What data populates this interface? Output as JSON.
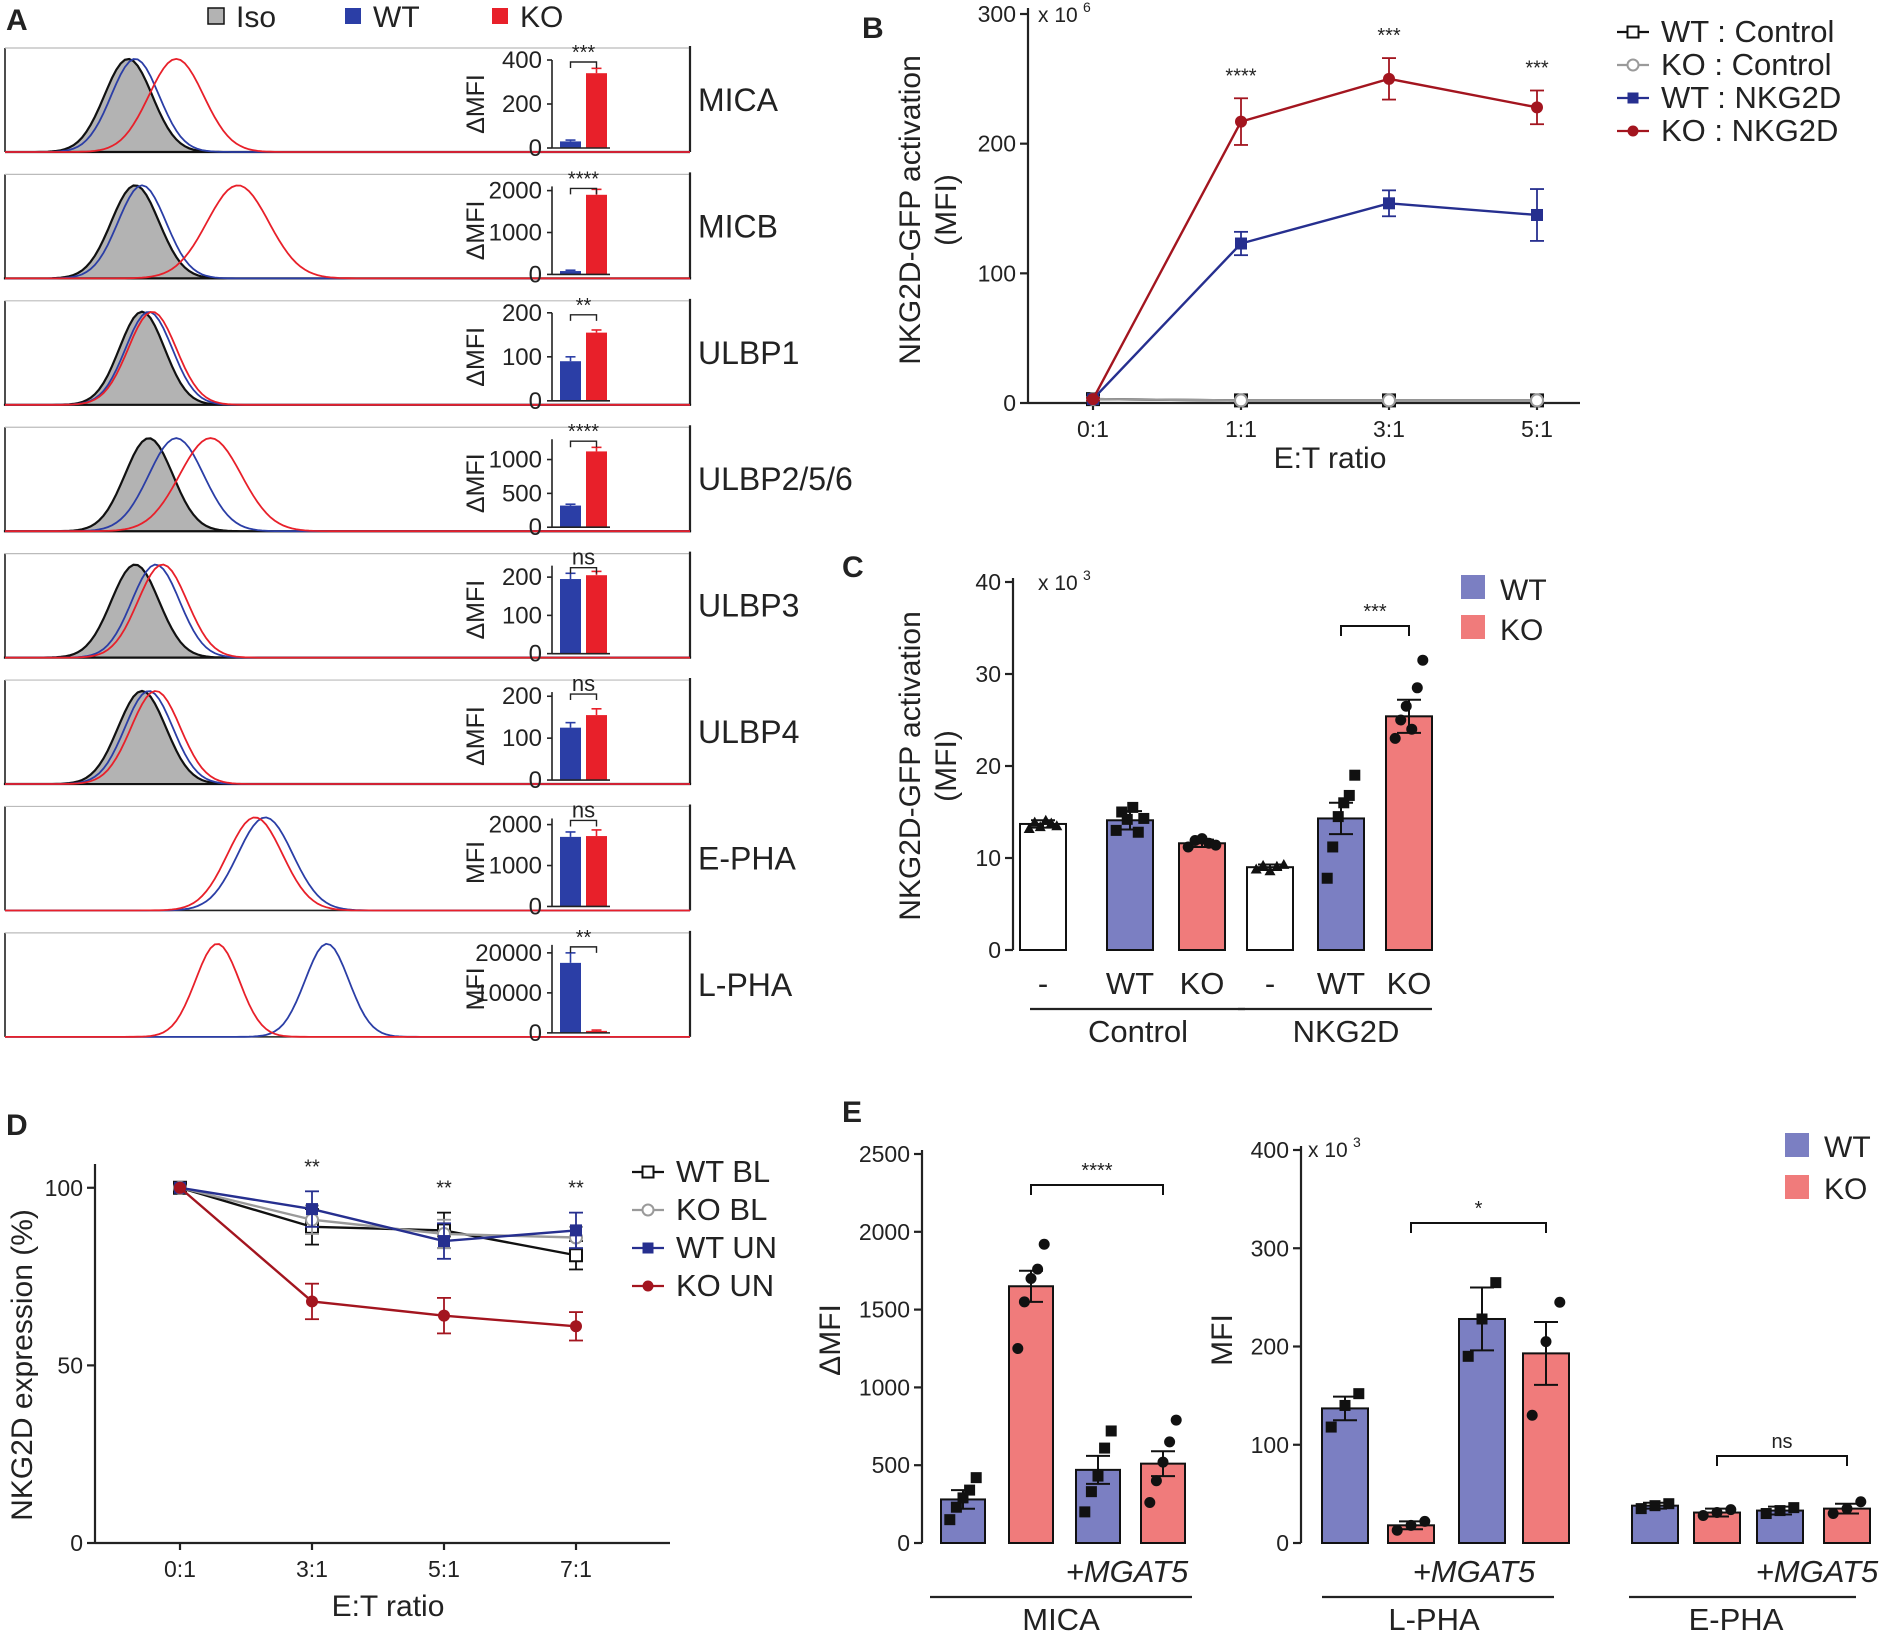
{
  "colors": {
    "iso_fill": "#b3b3b3",
    "iso_line": "#111111",
    "wt_hist": "#2b3ea6",
    "ko_hist": "#e8202a",
    "wt_dark": "#262f8f",
    "ko_dark": "#a3151f",
    "wt_light": "#7b7fc2",
    "ko_light": "#f07b7b",
    "gray": "#9a9a9a",
    "black": "#111111"
  },
  "chart_data": [
    {
      "panel": "A",
      "type": "histogram-with-bars",
      "legend": [
        "Iso",
        "WT",
        "KO"
      ],
      "rows": [
        {
          "name": "MICA",
          "ylabel": "ΔMFI",
          "ticks": [
            0,
            200,
            400
          ],
          "tick_labels": [
            "0",
            "200",
            "400"
          ],
          "ymax": 400,
          "wt": 30,
          "ko": 340,
          "wt_err": 6,
          "ko_err": 22,
          "sig": "***",
          "peaks": {
            "iso": 0.18,
            "wt": 0.19,
            "ko": 0.25
          },
          "widths": {
            "iso": 0.035,
            "wt": 0.035,
            "ko": 0.04
          }
        },
        {
          "name": "MICB",
          "ylabel": "ΔMFI",
          "ticks": [
            0,
            1000,
            2000
          ],
          "tick_labels": [
            "0",
            "1000",
            "2000"
          ],
          "ymax": 2100,
          "wt": 80,
          "ko": 1900,
          "wt_err": 20,
          "ko_err": 130,
          "sig": "****",
          "peaks": {
            "iso": 0.19,
            "wt": 0.2,
            "ko": 0.34
          },
          "widths": {
            "iso": 0.035,
            "wt": 0.035,
            "ko": 0.045
          }
        },
        {
          "name": "ULBP1",
          "ylabel": "ΔMFI",
          "ticks": [
            0,
            100,
            200
          ],
          "tick_labels": [
            "0",
            "100",
            "200"
          ],
          "ymax": 200,
          "wt": 90,
          "ko": 155,
          "wt_err": 10,
          "ko_err": 6,
          "sig": "**",
          "peaks": {
            "iso": 0.2,
            "wt": 0.21,
            "ko": 0.215
          },
          "widths": {
            "iso": 0.033,
            "wt": 0.034,
            "ko": 0.035
          }
        },
        {
          "name": "ULBP2/5/6",
          "ylabel": "ΔMFI",
          "ticks": [
            0,
            500,
            1000
          ],
          "tick_labels": [
            "0",
            "500",
            "1000"
          ],
          "ymax": 1300,
          "wt": 320,
          "ko": 1120,
          "wt_err": 20,
          "ko_err": 60,
          "sig": "****",
          "peaks": {
            "iso": 0.21,
            "wt": 0.25,
            "ko": 0.3
          },
          "widths": {
            "iso": 0.035,
            "wt": 0.04,
            "ko": 0.045
          }
        },
        {
          "name": "ULBP3",
          "ylabel": "ΔMFI",
          "ticks": [
            0,
            100,
            200
          ],
          "tick_labels": [
            "0",
            "100",
            "200"
          ],
          "ymax": 230,
          "wt": 195,
          "ko": 205,
          "wt_err": 15,
          "ko_err": 10,
          "sig": "ns",
          "peaks": {
            "iso": 0.19,
            "wt": 0.22,
            "ko": 0.23
          },
          "widths": {
            "iso": 0.035,
            "wt": 0.035,
            "ko": 0.036
          }
        },
        {
          "name": "ULBP4",
          "ylabel": "ΔMFI",
          "ticks": [
            0,
            100,
            200
          ],
          "tick_labels": [
            "0",
            "100",
            "200"
          ],
          "ymax": 210,
          "wt": 125,
          "ko": 155,
          "wt_err": 12,
          "ko_err": 15,
          "sig": "ns",
          "peaks": {
            "iso": 0.2,
            "wt": 0.21,
            "ko": 0.22
          },
          "widths": {
            "iso": 0.035,
            "wt": 0.035,
            "ko": 0.036
          }
        },
        {
          "name": "E-PHA",
          "ylabel": "MFI",
          "ticks": [
            0,
            1000,
            2000
          ],
          "tick_labels": [
            "0",
            "1000",
            "2000"
          ],
          "ymax": 2150,
          "wt": 1700,
          "ko": 1720,
          "wt_err": 120,
          "ko_err": 150,
          "sig": "ns",
          "peaks": {
            "wt": 0.38,
            "ko": 0.365
          },
          "widths": {
            "wt": 0.04,
            "ko": 0.04
          }
        },
        {
          "name": "L-PHA",
          "ylabel": "MFI",
          "ticks": [
            0,
            10000,
            20000
          ],
          "tick_labels": [
            "0",
            "10000",
            "20000"
          ],
          "ymax": 22000,
          "wt": 17500,
          "ko": 500,
          "wt_err": 2500,
          "ko_err": 200,
          "sig": "**",
          "peaks": {
            "wt": 0.47,
            "ko": 0.31
          },
          "widths": {
            "wt": 0.032,
            "ko": 0.032
          }
        }
      ]
    },
    {
      "panel": "B",
      "type": "line",
      "ylabel": "NKG2D-GFP activation (MFI)",
      "xlabel": "E:T ratio",
      "multiplier": "x 10",
      "multiplier_exp": "6",
      "categories": [
        "0:1",
        "1:1",
        "3:1",
        "5:1"
      ],
      "yticks": [
        0,
        100,
        200,
        300
      ],
      "tick_labels": [
        "0",
        "100",
        "200",
        "300"
      ],
      "ylim": [
        0,
        300
      ],
      "series": [
        {
          "name": "WT : Control",
          "values": [
            3,
            2,
            2,
            2
          ],
          "err": [
            1,
            1,
            1,
            1
          ],
          "marker": "open-square",
          "color": "black"
        },
        {
          "name": "KO : Control",
          "values": [
            3,
            2,
            2,
            2
          ],
          "err": [
            1,
            1,
            1,
            1
          ],
          "marker": "open-circle",
          "color": "gray"
        },
        {
          "name": "WT : NKG2D",
          "values": [
            3,
            123,
            154,
            145
          ],
          "err": [
            1,
            9,
            10,
            20
          ],
          "marker": "square",
          "color": "wt_dark"
        },
        {
          "name": "KO : NKG2D",
          "values": [
            3,
            217,
            250,
            228
          ],
          "err": [
            1,
            18,
            16,
            13
          ],
          "marker": "circle",
          "color": "ko_dark"
        }
      ],
      "significance": [
        "",
        "****",
        "***",
        "***"
      ]
    },
    {
      "panel": "C",
      "type": "bar",
      "ylabel": "NKG2D-GFP activation (MFI)",
      "multiplier": "x 10",
      "multiplier_exp": "3",
      "yticks": [
        0,
        10,
        20,
        30,
        40
      ],
      "tick_labels": [
        "0",
        "10",
        "20",
        "30",
        "40"
      ],
      "ylim": [
        0,
        40
      ],
      "legend": [
        "WT",
        "KO"
      ],
      "categories": [
        "-",
        "WT",
        "KO",
        "-",
        "WT",
        "KO"
      ],
      "groups": [
        "Control",
        "NKG2D"
      ],
      "values": [
        13.7,
        14.1,
        11.6,
        9.0,
        14.3,
        25.4
      ],
      "errors": [
        0.4,
        1.0,
        0.4,
        0.3,
        1.7,
        1.8
      ],
      "fill": [
        "white",
        "wt_light",
        "ko_light",
        "white",
        "wt_light",
        "ko_light"
      ],
      "marker": [
        "triangle",
        "square",
        "circle",
        "triangle",
        "square",
        "circle"
      ],
      "points": [
        [
          13.2,
          13.9,
          13.4,
          14.1,
          13.8,
          13.5
        ],
        [
          13.0,
          15.0,
          14.2,
          15.5,
          12.8,
          14.3
        ],
        [
          11.2,
          11.9,
          12.1,
          11.6,
          11.4
        ],
        [
          8.8,
          9.2,
          8.6,
          9.1,
          9.3
        ],
        [
          7.8,
          11.2,
          14.5,
          16.0,
          16.8,
          19.0
        ],
        [
          23.0,
          25.0,
          26.5,
          24.0,
          28.5,
          31.5
        ]
      ],
      "significance": {
        "between": [
          4,
          5
        ],
        "label": "***"
      }
    },
    {
      "panel": "D",
      "type": "line",
      "ylabel": "NKG2D expression (%)",
      "xlabel": "E:T ratio",
      "categories": [
        "0:1",
        "3:1",
        "5:1",
        "7:1"
      ],
      "yticks": [
        0,
        50,
        100
      ],
      "tick_labels": [
        "0",
        "50",
        "100"
      ],
      "ylim": [
        0,
        105
      ],
      "series": [
        {
          "name": "WT BL",
          "values": [
            100,
            89,
            88,
            81
          ],
          "err": [
            0,
            5,
            5,
            4
          ],
          "marker": "open-square",
          "color": "black"
        },
        {
          "name": "KO BL",
          "values": [
            100,
            91,
            87,
            86
          ],
          "err": [
            0,
            4,
            4,
            3
          ],
          "marker": "open-circle",
          "color": "gray"
        },
        {
          "name": "WT UN",
          "values": [
            100,
            94,
            85,
            88
          ],
          "err": [
            0,
            5,
            5,
            5
          ],
          "marker": "square",
          "color": "wt_dark"
        },
        {
          "name": "KO UN",
          "values": [
            100,
            68,
            64,
            61
          ],
          "err": [
            0,
            5,
            5,
            4
          ],
          "marker": "circle",
          "color": "ko_dark"
        }
      ],
      "significance": [
        "",
        "**",
        "**",
        "**"
      ]
    },
    {
      "panel": "E",
      "type": "bar",
      "sub": "MICA",
      "ylabel": "ΔMFI",
      "yticks": [
        0,
        500,
        1000,
        1500,
        2000,
        2500
      ],
      "tick_labels": [
        "0",
        "500",
        "1000",
        "1500",
        "2000",
        "2500"
      ],
      "ylim": [
        0,
        2500
      ],
      "values": [
        280,
        1650,
        470,
        510
      ],
      "errors": [
        60,
        100,
        90,
        80
      ],
      "fill": [
        "wt_light",
        "ko_light",
        "wt_light",
        "ko_light"
      ],
      "marker": [
        "square",
        "circle",
        "square",
        "circle"
      ],
      "points": [
        [
          150,
          230,
          290,
          340,
          420
        ],
        [
          1250,
          1550,
          1700,
          1760,
          1920
        ],
        [
          200,
          330,
          430,
          610,
          720
        ],
        [
          260,
          400,
          520,
          650,
          790
        ]
      ],
      "rescue_label": "+MGAT5",
      "significance": {
        "between": [
          1,
          3
        ],
        "label": "****"
      }
    },
    {
      "panel": "E",
      "type": "bar",
      "sub": "PHA",
      "ylabel": "MFI",
      "multiplier": "x 10",
      "multiplier_exp": "3",
      "yticks": [
        0,
        100,
        200,
        300,
        400
      ],
      "tick_labels": [
        "0",
        "100",
        "200",
        "300",
        "400"
      ],
      "ylim": [
        0,
        400
      ],
      "groups": [
        "L-PHA",
        "E-PHA"
      ],
      "legend": [
        "WT",
        "KO"
      ],
      "values": [
        137,
        18,
        228,
        193,
        38,
        31,
        33,
        35
      ],
      "errors": [
        12,
        4,
        32,
        32,
        3,
        4,
        4,
        5
      ],
      "fill": [
        "wt_light",
        "ko_light",
        "wt_light",
        "ko_light",
        "wt_light",
        "ko_light",
        "wt_light",
        "ko_light"
      ],
      "marker": [
        "square",
        "circle",
        "square",
        "circle",
        "square",
        "circle",
        "square",
        "circle"
      ],
      "points": [
        [
          118,
          140,
          152
        ],
        [
          13,
          18,
          22
        ],
        [
          190,
          228,
          265
        ],
        [
          130,
          205,
          245
        ],
        [
          35,
          38,
          40
        ],
        [
          28,
          31,
          34
        ],
        [
          30,
          33,
          36
        ],
        [
          30,
          35,
          42
        ]
      ],
      "rescue_label": "+MGAT5",
      "significance": [
        {
          "between": [
            1,
            3
          ],
          "label": "*"
        },
        {
          "between": [
            5,
            7
          ],
          "label": "ns"
        }
      ]
    }
  ]
}
